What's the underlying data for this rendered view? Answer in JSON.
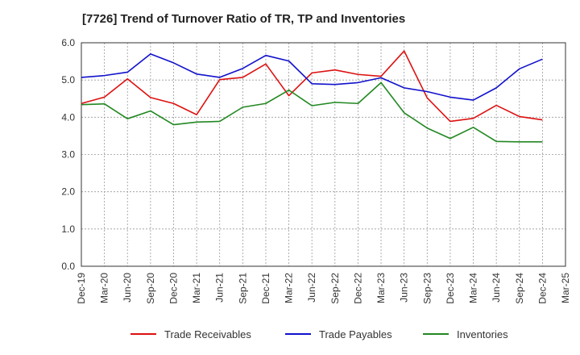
{
  "chart_data": {
    "type": "line",
    "title": "[7726]  Trend of Turnover Ratio of TR, TP and Inventories",
    "xlabel": "",
    "ylabel": "",
    "ylim": [
      0,
      6
    ],
    "yticks": [
      "0.0",
      "1.0",
      "2.0",
      "3.0",
      "4.0",
      "5.0",
      "6.0"
    ],
    "x": [
      "Dec-19",
      "Mar-20",
      "Jun-20",
      "Sep-20",
      "Dec-20",
      "Mar-21",
      "Jun-21",
      "Sep-21",
      "Dec-21",
      "Mar-22",
      "Jun-22",
      "Sep-22",
      "Dec-22",
      "Mar-23",
      "Jun-23",
      "Sep-23",
      "Dec-23",
      "Mar-24",
      "Jun-24",
      "Sep-24",
      "Dec-24",
      "Mar-25"
    ],
    "grid": true,
    "legend_position": "bottom",
    "series": [
      {
        "name": "Trade Receivables",
        "color": "#dd1111",
        "values": [
          4.37,
          4.54,
          5.03,
          4.53,
          4.37,
          4.07,
          5.01,
          5.07,
          5.43,
          4.58,
          5.19,
          5.27,
          5.15,
          5.1,
          5.78,
          4.52,
          3.89,
          3.97,
          4.32,
          4.02,
          3.93,
          null
        ]
      },
      {
        "name": "Trade Payables",
        "color": "#1111cc",
        "values": [
          5.07,
          5.12,
          5.21,
          5.7,
          5.46,
          5.16,
          5.07,
          5.31,
          5.66,
          5.51,
          4.9,
          4.88,
          4.93,
          5.06,
          4.79,
          4.69,
          4.54,
          4.46,
          4.79,
          5.3,
          5.56,
          null
        ]
      },
      {
        "name": "Inventories",
        "color": "#228822",
        "values": [
          4.34,
          4.36,
          3.96,
          4.17,
          3.8,
          3.87,
          3.89,
          4.27,
          4.37,
          4.73,
          4.31,
          4.4,
          4.37,
          4.93,
          4.12,
          3.71,
          3.43,
          3.73,
          3.35,
          3.34,
          3.34,
          null
        ]
      }
    ]
  }
}
